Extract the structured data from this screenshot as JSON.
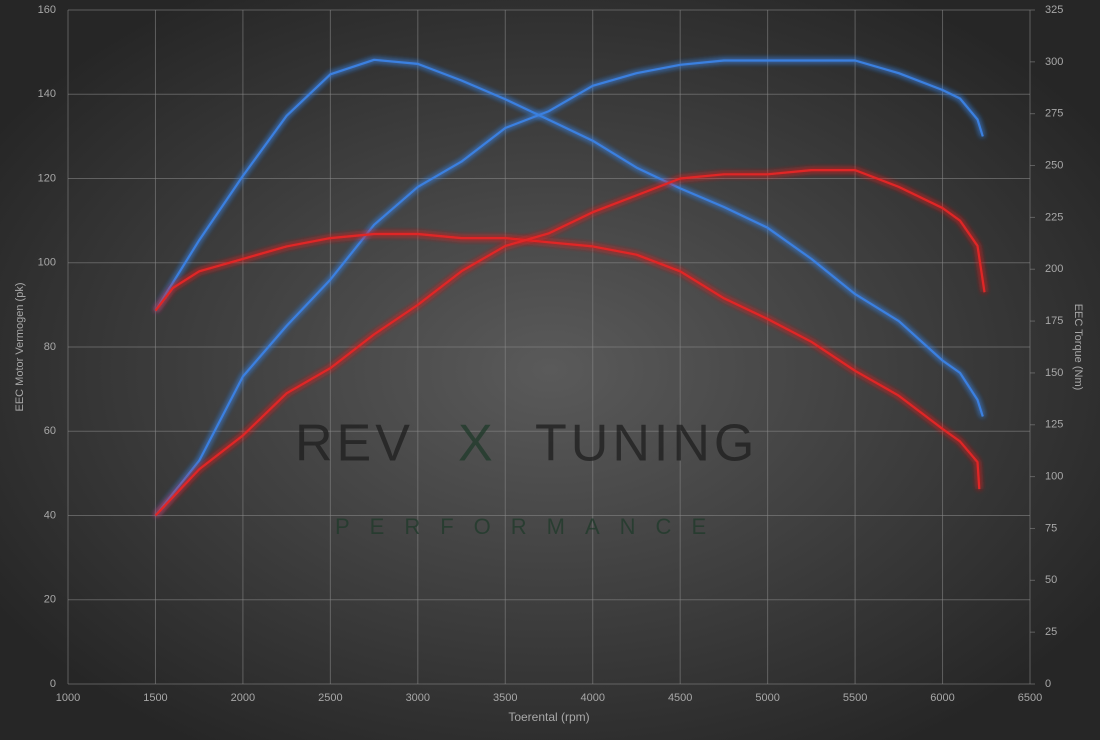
{
  "chart_data": {
    "type": "line",
    "x_label": "Toerental (rpm)",
    "y_label": "EEC Motor Vermogen (pk)",
    "y2_label": "EEC Torque (Nm)",
    "watermark": [
      "REV",
      "X",
      "TUNING",
      "PERFORMANCE"
    ],
    "xlim": [
      1000,
      6500
    ],
    "xticks": [
      1000,
      1500,
      2000,
      2500,
      3000,
      3500,
      4000,
      4500,
      5000,
      5500,
      6000,
      6500
    ],
    "ylim": [
      0,
      160
    ],
    "yticks": [
      0,
      20,
      40,
      60,
      80,
      100,
      120,
      140,
      160
    ],
    "y2lim": [
      0,
      325
    ],
    "y2ticks": [
      0,
      25,
      50,
      75,
      100,
      125,
      150,
      175,
      200,
      225,
      250,
      275,
      300,
      325
    ],
    "grid": true,
    "series": [
      {
        "color": "#3a80e0",
        "axis": "y2",
        "x": [
          1500,
          1750,
          2000,
          2250,
          2500,
          2750,
          3000,
          3250,
          3500,
          3750,
          4000,
          4250,
          4500,
          4750,
          5000,
          5250,
          5500,
          5750,
          6000,
          6100,
          6200,
          6230
        ],
        "values": [
          180,
          214,
          245,
          274,
          294,
          301,
          299,
          291,
          282,
          272,
          262,
          249,
          239,
          230,
          220,
          205,
          188,
          175,
          156,
          150,
          137,
          129
        ]
      },
      {
        "color": "#3a80e0",
        "axis": "y",
        "x": [
          1500,
          1750,
          2000,
          2250,
          2500,
          2750,
          3000,
          3250,
          3500,
          3750,
          4000,
          4250,
          4500,
          4750,
          5000,
          5250,
          5500,
          5750,
          6000,
          6100,
          6200,
          6230
        ],
        "values": [
          40,
          53,
          73,
          85,
          96,
          109,
          118,
          124,
          132,
          136,
          142,
          145,
          147,
          148,
          148,
          148,
          148,
          145,
          141,
          139,
          134,
          130
        ]
      },
      {
        "color": "#e02828",
        "axis": "y2",
        "x": [
          1500,
          1600,
          1750,
          2000,
          2250,
          2500,
          2750,
          3000,
          3250,
          3500,
          3750,
          4000,
          4250,
          4500,
          4750,
          5000,
          5250,
          5500,
          5750,
          6000,
          6100,
          6200,
          6210
        ],
        "values": [
          180,
          191,
          199,
          205,
          211,
          215,
          217,
          217,
          215,
          215,
          213,
          211,
          207,
          199,
          186,
          176,
          165,
          151,
          139,
          123,
          117,
          107,
          94
        ]
      },
      {
        "color": "#e02828",
        "axis": "y",
        "x": [
          1500,
          1750,
          2000,
          2250,
          2500,
          2750,
          3000,
          3250,
          3500,
          3750,
          4000,
          4250,
          4500,
          4750,
          5000,
          5250,
          5500,
          5750,
          6000,
          6100,
          6200,
          6240
        ],
        "values": [
          40,
          51,
          59,
          69,
          75,
          83,
          90,
          98,
          104,
          107,
          112,
          116,
          120,
          121,
          121,
          122,
          122,
          118,
          113,
          110,
          104,
          93
        ]
      }
    ]
  }
}
